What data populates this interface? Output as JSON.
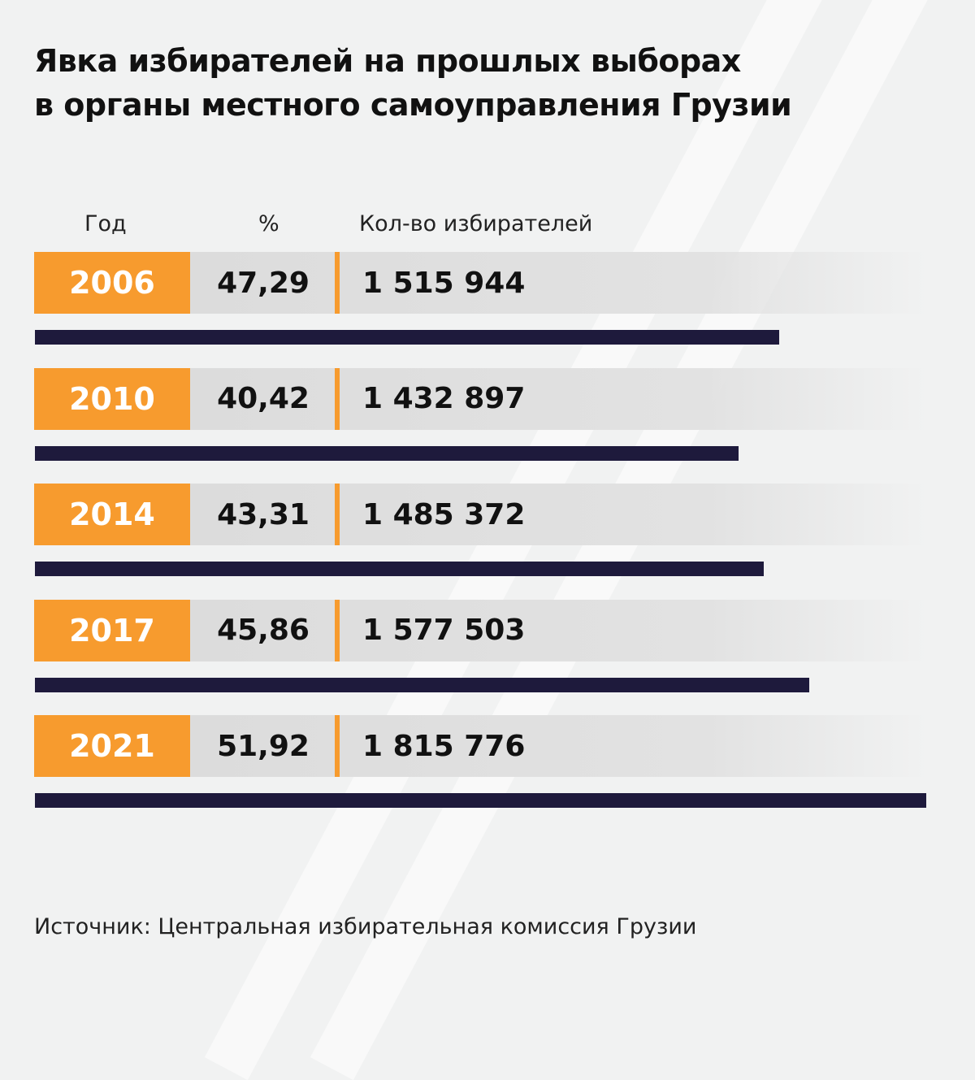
{
  "title_line1": "Явка избирателей на прошлых выборах",
  "title_line2": "в органы местного самоуправления Грузии",
  "source": "Источник: Центральная избирательная комиссия Грузии",
  "colors": {
    "accent": "#f79b2e",
    "bar": "#1e1a3c",
    "background": "#f1f2f2"
  },
  "chart_data": {
    "type": "bar",
    "orientation": "horizontal",
    "columns": [
      "Год",
      "%",
      "Кол-во избирателей"
    ],
    "rows": [
      {
        "year": "2006",
        "percent": "47,29",
        "voters_label": "1 515 944",
        "voters": 1515944
      },
      {
        "year": "2010",
        "percent": "40,42",
        "voters_label": "1 432 897",
        "voters": 1432897
      },
      {
        "year": "2014",
        "percent": "43,31",
        "voters_label": "1 485 372",
        "voters": 1485372
      },
      {
        "year": "2017",
        "percent": "45,86",
        "voters_label": "1 577 503",
        "voters": 1577503
      },
      {
        "year": "2021",
        "percent": "51,92",
        "voters_label": "1 815 776",
        "voters": 1815776
      }
    ]
  }
}
